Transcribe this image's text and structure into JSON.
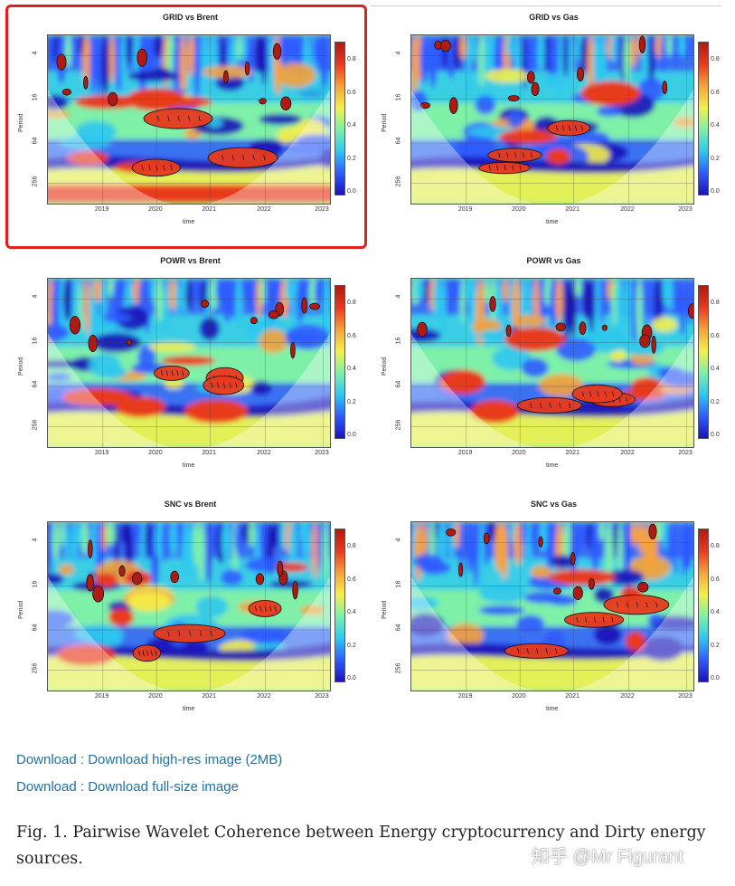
{
  "figure": {
    "panels": [
      {
        "title": "GRID vs Brent",
        "highlighted": true,
        "seed": 11
      },
      {
        "title": "GRID vs Gas",
        "highlighted": false,
        "seed": 23
      },
      {
        "title": "POWR vs Brent",
        "highlighted": false,
        "seed": 37
      },
      {
        "title": "POWR vs Gas",
        "highlighted": false,
        "seed": 41
      },
      {
        "title": "SNC vs Brent",
        "highlighted": false,
        "seed": 53
      },
      {
        "title": "SNC vs Gas",
        "highlighted": false,
        "seed": 67
      }
    ],
    "axes": {
      "ylabel": "Period",
      "xlabel": "time",
      "yticks": [
        "4",
        "16",
        "64",
        "256"
      ],
      "xticks": [
        "2019",
        "2020",
        "2021",
        "2022",
        "2023"
      ],
      "colorbar_ticks": [
        "0.8",
        "0.6",
        "0.4",
        "0.2",
        "0.0"
      ]
    },
    "colors": {
      "highlight": "#e0211d",
      "scale": [
        "#1a12b8",
        "#2f5cff",
        "#2ec8f0",
        "#7ef0a8",
        "#f4f04a",
        "#f5a23a",
        "#e83a1e",
        "#b01a12"
      ]
    }
  },
  "links": {
    "download_highres": "Download : Download high-res image (2MB)",
    "download_fullsize": "Download : Download full-size image"
  },
  "caption": "Fig. 1. Pairwise Wavelet Coherence between Energy cryptocurrency and Dirty energy sources.",
  "watermark": "知乎 @Mr Figurant"
}
